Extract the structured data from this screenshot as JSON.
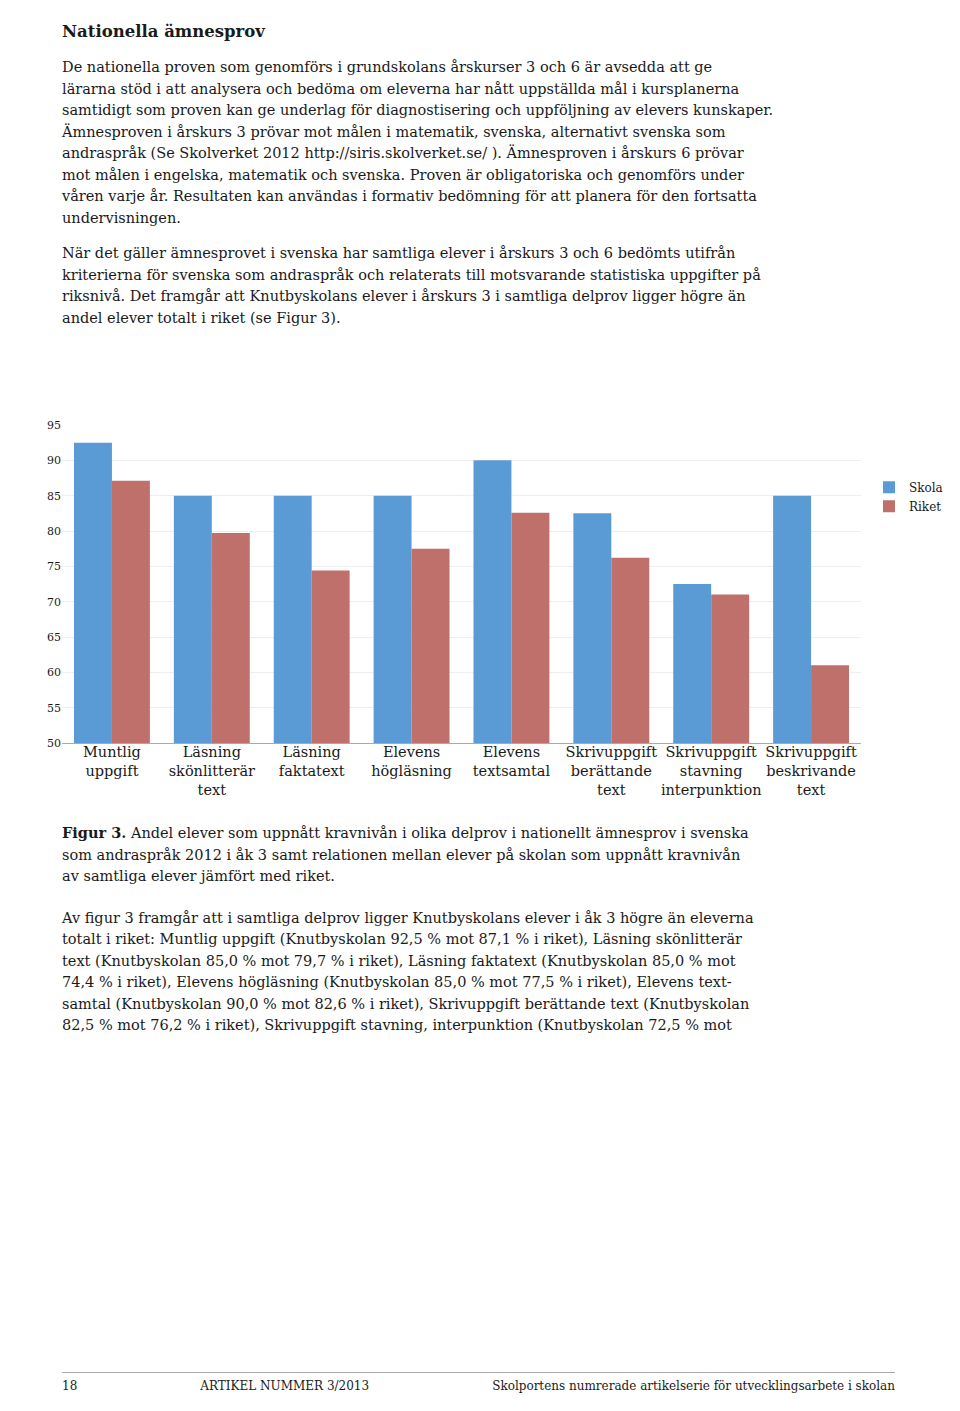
{
  "heading": "Nationella ämnesprov",
  "paragraphs": [
    [
      "De nationella proven som genomförs i grundskolans årskurser 3 och 6 är avsedda att ge",
      "lärarna stöd i att analysera och bedöma om eleverna har nått uppställda mål i kursplanerna",
      "samtidigt som proven kan ge underlag för diagnostisering och uppföljning av elevers kunskaper.",
      "Ämnesproven i årskurs 3 prövar mot målen i matematik, svenska, alternativt svenska som",
      "andraspråk (Se Skolverket 2012 http://siris.skolverket.se/ ). Ämnesproven i årskurs 6 prövar",
      "mot målen i engelska, matematik och svenska. Proven är obligatoriska och genomförs under",
      "våren varje år. Resultaten kan användas i formativ bedömning för att planera för den fortsatta",
      "undervisningen."
    ],
    [
      "När det gäller ämnesprovet i svenska har samtliga elever i årskurs 3 och 6 bedömts utifrån",
      "kriterierna för svenska som andraspråk och relaterats till motsvarande statistiska uppgifter på",
      "riksnivå. Det framgår att Knutbyskolans elever i årskurs 3 i samtliga delprov ligger högre än",
      "andel elever totalt i riket (se Figur 3)."
    ]
  ],
  "chart_data": {
    "type": "bar",
    "categories": [
      "Muntlig\nuppgift",
      "Läsning\nskönlitterär\ntext",
      "Läsning\nfaktatext",
      "Elevens\nhögläsning",
      "Elevens\ntextsamtal",
      "Skrivuppgift\nberättande\ntext",
      "Skrivuppgift\nstavning\ninterpunktion",
      "Skrivuppgift\nbeskrivande\ntext"
    ],
    "series": [
      {
        "name": "Skola",
        "color": "#5B9BD5",
        "values": [
          92.5,
          85.0,
          85.0,
          85.0,
          90.0,
          82.5,
          72.5,
          85.0
        ]
      },
      {
        "name": "Riket",
        "color": "#C0706A",
        "values": [
          87.1,
          79.7,
          74.4,
          77.5,
          82.6,
          76.2,
          71.0,
          61.0
        ]
      }
    ],
    "ylim": [
      50,
      95
    ],
    "yticks": [
      50,
      55,
      60,
      65,
      70,
      75,
      80,
      85,
      90,
      95
    ],
    "grid": true,
    "legend": "right"
  },
  "caption": {
    "bold": "Figur 3.",
    "lines": [
      " Andel elever som uppnått kravnivån i olika delprov i nationellt ämnesprov i svenska",
      "som andraspråk 2012 i åk 3 samt relationen mellan elever på skolan som uppnått kravnivån",
      "av samtliga elever jämfört med riket."
    ]
  },
  "after_paragraphs": [
    [
      "Av figur 3 framgår att i samtliga delprov ligger Knutbyskolans elever i åk 3 högre än eleverna",
      "totalt i riket: Muntlig uppgift (Knutbyskolan 92,5 % mot 87,1 % i riket), Läsning skönlitterär",
      "text (Knutbyskolan 85,0 % mot 79,7 % i riket), Läsning faktatext (Knutbyskolan 85,0 % mot",
      "74,4 % i riket), Elevens högläsning (Knutbyskolan 85,0 % mot 77,5 % i riket), Elevens text-",
      "samtal (Knutbyskolan 90,0 % mot 82,6 % i riket), Skrivuppgift berättande text (Knutbyskolan",
      "82,5 % mot 76,2 % i riket), Skrivuppgift stavning, interpunktion (Knutbyskolan 72,5 % mot"
    ]
  ],
  "footer": {
    "left": "18",
    "center": "ARTIKEL NUMMER 3/2013",
    "right": "Skolportens numrerade artikelserie för utvecklingsarbete i skolan"
  }
}
